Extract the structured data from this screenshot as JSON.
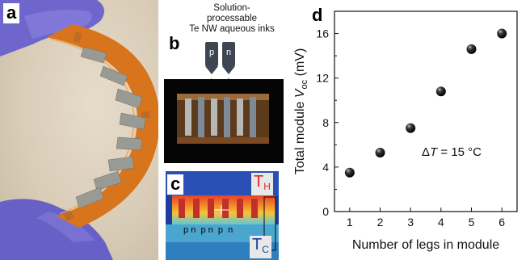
{
  "panels": {
    "a": {
      "label": "a"
    },
    "b": {
      "label": "b",
      "text_lines": [
        "Solution-",
        "processable",
        "Te NW aqueous inks"
      ],
      "pen_labels": [
        "p",
        "n"
      ]
    },
    "c": {
      "label": "c",
      "th_label": "T",
      "th_sub": "H",
      "tc_label": "T",
      "tc_sub": "C",
      "leg_labels": [
        "p",
        "n",
        "p",
        "n",
        "p",
        "n"
      ]
    },
    "d": {
      "label": "d",
      "annotation": "ΔT = 15 °C"
    }
  },
  "colors": {
    "glove": "#6b64c9",
    "kapton": "#d9781e",
    "annotation": "#e3262a",
    "marker": "#111111"
  },
  "chart_data": {
    "type": "scatter",
    "x": [
      1,
      2,
      3,
      4,
      5,
      6
    ],
    "y": [
      3.5,
      5.3,
      7.5,
      10.8,
      14.6,
      16.0
    ],
    "xlabel": "Number of legs in module",
    "ylabel_prefix": "Total module ",
    "ylabel_var": "V",
    "ylabel_sub": "oc",
    "ylabel_unit": " (mV)",
    "xlim": [
      0.5,
      6.5
    ],
    "ylim": [
      0,
      18
    ],
    "xticks": [
      "1",
      "2",
      "3",
      "4",
      "5",
      "6"
    ],
    "yticks": [
      "0",
      "4",
      "8",
      "12",
      "16"
    ],
    "grid": false
  }
}
